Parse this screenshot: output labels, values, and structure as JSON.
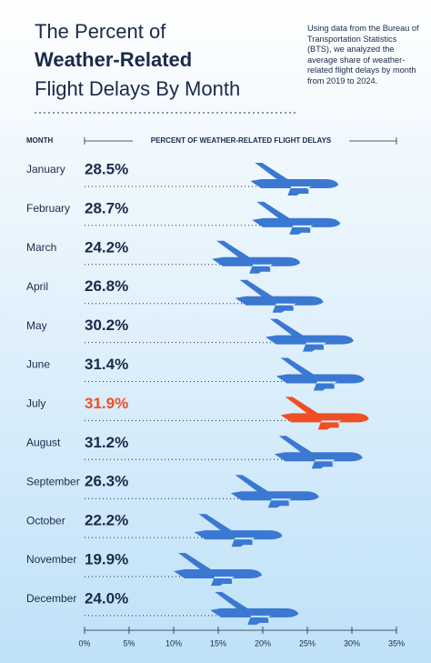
{
  "chart_data": {
    "type": "bar",
    "title": [
      "The Percent of",
      "Weather-Related",
      "Flight Delays By Month"
    ],
    "description": "Using data from the Bureau of Transportation Statistics (BTS), we analyzed the average share of weather-related flight delays by month from 2019 to 2024.",
    "category_header": "MONTH",
    "value_header": "PERCENT OF WEATHER-RELATED FLIGHT DELAYS",
    "categories": [
      "January",
      "February",
      "March",
      "April",
      "May",
      "June",
      "July",
      "August",
      "September",
      "October",
      "November",
      "December"
    ],
    "values": [
      28.5,
      28.7,
      24.2,
      26.8,
      30.2,
      31.4,
      31.9,
      31.2,
      26.3,
      22.2,
      19.9,
      24.0
    ],
    "value_labels": [
      "28.5%",
      "28.7%",
      "24.2%",
      "26.8%",
      "30.2%",
      "31.4%",
      "31.9%",
      "31.2%",
      "26.3%",
      "22.2%",
      "19.9%",
      "24.0%"
    ],
    "colors": [
      "#3a78d2",
      "#3a78d2",
      "#3a78d2",
      "#3a78d2",
      "#3a78d2",
      "#3a78d2",
      "#f04e23",
      "#3a78d2",
      "#3a78d2",
      "#3a78d2",
      "#3a78d2",
      "#3a78d2"
    ],
    "xlim": [
      0,
      35
    ],
    "xticks": [
      {
        "value": 0,
        "label": "0%"
      },
      {
        "value": 5,
        "label": "5%"
      },
      {
        "value": 10,
        "label": "10%"
      },
      {
        "value": 15,
        "label": "15%"
      },
      {
        "value": 20,
        "label": "20%"
      },
      {
        "value": 25,
        "label": "25%"
      },
      {
        "value": 30,
        "label": "30%"
      },
      {
        "value": 35,
        "label": "35%"
      }
    ]
  }
}
